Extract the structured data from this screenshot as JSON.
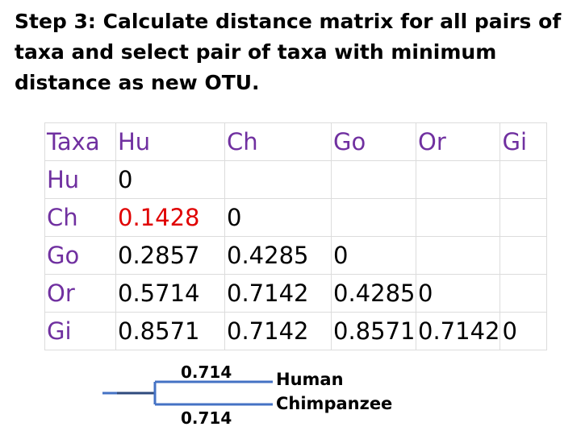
{
  "heading": "Step 3: Calculate  distance matrix  for all pairs of taxa and select pair of taxa with minimum distance as new OTU.",
  "matrix": {
    "header": [
      "Taxa",
      "Hu",
      "Ch",
      "Go",
      "Or",
      "Gi"
    ],
    "rows": [
      {
        "label": "Hu",
        "cells": [
          "0",
          "",
          "",
          "",
          ""
        ]
      },
      {
        "label": "Ch",
        "cells": [
          "0.1428",
          "0",
          "",
          "",
          ""
        ]
      },
      {
        "label": "Go",
        "cells": [
          "0.2857",
          "0.4285",
          "0",
          "",
          ""
        ]
      },
      {
        "label": "Or",
        "cells": [
          "0.5714",
          "0.7142",
          "0.4285",
          "0",
          ""
        ]
      },
      {
        "label": "Gi",
        "cells": [
          "0.8571",
          "0.7142",
          "0.8571",
          "0.7142",
          "0"
        ]
      }
    ],
    "highlight_value": "0.1428",
    "highlight_color": "#e00000",
    "header_color": "#7030a0"
  },
  "tree": {
    "branch_top_label": "0.714",
    "branch_bottom_label": "0.714",
    "leaf_top": "Human",
    "leaf_bottom": "Chimpanzee",
    "stroke_color": "#4472c4"
  }
}
